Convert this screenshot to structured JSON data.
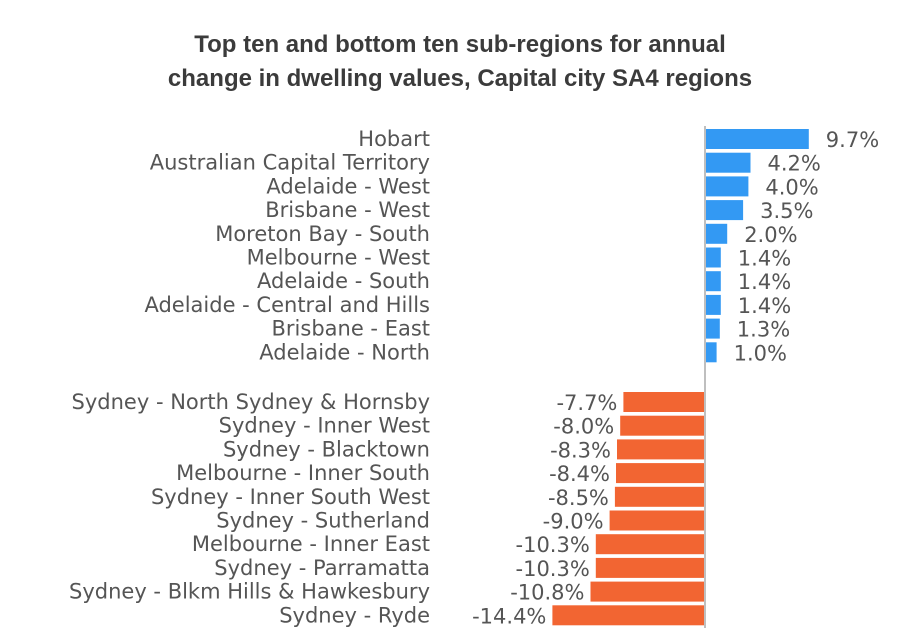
{
  "title_lines": [
    "Top ten and bottom ten sub-regions for annual",
    "change in dwelling values, Capital city SA4 regions"
  ],
  "colors": {
    "positive": "#3399f3",
    "negative": "#f26532",
    "axis": "#bfbfbf",
    "text": "#555555"
  },
  "chart_data": {
    "type": "bar",
    "orientation": "horizontal",
    "title": "Top ten and bottom ten sub-regions for annual change in dwelling values, Capital city SA4 regions",
    "value_format": "percent, 1 decimal",
    "groups": [
      {
        "name": "top",
        "categories": [
          "Hobart",
          "Australian Capital Territory",
          "Adelaide - West",
          "Brisbane - West",
          "Moreton Bay - South",
          "Melbourne - West",
          "Adelaide - South",
          "Adelaide - Central and Hills",
          "Brisbane - East",
          "Adelaide - North"
        ],
        "values": [
          9.7,
          4.2,
          4.0,
          3.5,
          2.0,
          1.4,
          1.4,
          1.4,
          1.3,
          1.0
        ],
        "labels": [
          "9.7%",
          "4.2%",
          "4.0%",
          "3.5%",
          "2.0%",
          "1.4%",
          "1.4%",
          "1.4%",
          "1.3%",
          "1.0%"
        ]
      },
      {
        "name": "bottom",
        "categories": [
          "Sydney - North Sydney & Hornsby",
          "Sydney - Inner West",
          "Sydney - Blacktown",
          "Melbourne - Inner South",
          "Sydney - Inner South West",
          "Sydney - Sutherland",
          "Melbourne - Inner East",
          "Sydney - Parramatta",
          "Sydney - Blkm Hills & Hawkesbury",
          "Sydney - Ryde"
        ],
        "values": [
          -7.7,
          -8.0,
          -8.3,
          -8.4,
          -8.5,
          -9.0,
          -10.3,
          -10.3,
          -10.8,
          -14.4
        ],
        "labels": [
          "-7.7%",
          "-8.0%",
          "-8.3%",
          "-8.4%",
          "-8.5%",
          "-9.0%",
          "-10.3%",
          "-10.3%",
          "-10.8%",
          "-14.4%"
        ]
      }
    ]
  }
}
